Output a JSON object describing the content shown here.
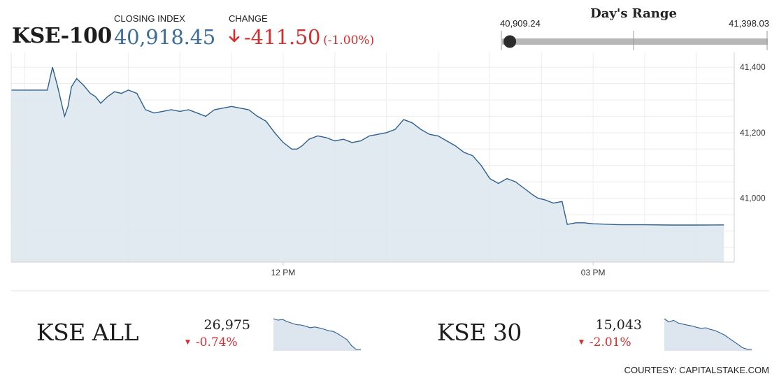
{
  "header": {
    "ticker": "KSE-100",
    "closing_label": "CLOSING INDEX",
    "closing_value": "40,918.45",
    "change_label": "CHANGE",
    "change_value": "-411.50",
    "change_pct": "(-1.00%)",
    "down_color": "#d32f2f",
    "accent_color": "#3d6e9b"
  },
  "day_range": {
    "title": "Day's Range",
    "low": "40,909.24",
    "high": "41,398.03",
    "low_value": 40909.24,
    "high_value": 41398.03,
    "current_value": 40918.45
  },
  "chart_data": {
    "type": "area",
    "x_ticks": [
      {
        "label": "12 PM",
        "time": 720
      },
      {
        "label": "03 PM",
        "time": 900
      }
    ],
    "y_ticks": [
      {
        "label": "41,400",
        "value": 41400
      },
      {
        "label": "41,200",
        "value": 41200
      },
      {
        "label": "41,000",
        "value": 41000
      }
    ],
    "ylim": [
      40805,
      41445
    ],
    "xlim": [
      562,
      982
    ],
    "grid": true,
    "line_color": "#2e5f8e",
    "fill_color": "#dde6ef",
    "series": [
      {
        "time": [
          570,
          578,
          583,
          586,
          589,
          593,
          595,
          597,
          600,
          604,
          608,
          611,
          614,
          618,
          622,
          626,
          630,
          635,
          640,
          645,
          650,
          655,
          660,
          665,
          670,
          675,
          680,
          685,
          690,
          695,
          700,
          705,
          710,
          715,
          720,
          725,
          728,
          731,
          735,
          740,
          745,
          750,
          755,
          760,
          765,
          770,
          775,
          780,
          785,
          790,
          795,
          800,
          805,
          810,
          815,
          820,
          825,
          830,
          835,
          840,
          845,
          850,
          855,
          860,
          865,
          868,
          872,
          877,
          882,
          885,
          890,
          895,
          898,
          900,
          905,
          910,
          915,
          920,
          930,
          945,
          960,
          976
        ],
        "value": [
          41330,
          41330,
          41330,
          41400,
          41340,
          41250,
          41280,
          41340,
          41365,
          41345,
          41320,
          41310,
          41290,
          41310,
          41325,
          41320,
          41330,
          41320,
          41270,
          41260,
          41265,
          41270,
          41265,
          41270,
          41260,
          41250,
          41270,
          41275,
          41280,
          41275,
          41270,
          41250,
          41235,
          41200,
          41170,
          41150,
          41150,
          41160,
          41180,
          41190,
          41185,
          41175,
          41180,
          41170,
          41175,
          41190,
          41195,
          41200,
          41210,
          41240,
          41230,
          41210,
          41195,
          41190,
          41175,
          41160,
          41140,
          41130,
          41100,
          41060,
          41045,
          41060,
          41050,
          41030,
          41010,
          41000,
          40995,
          40985,
          40990,
          40920,
          40925,
          40925,
          40923,
          40922,
          40921,
          40920,
          40919,
          40919,
          40919,
          40918,
          40918,
          40918.45
        ]
      }
    ]
  },
  "mini_indices": [
    {
      "name": "KSE ALL",
      "value": "26,975",
      "change": "-0.74%",
      "sparkline": [
        27180,
        27170,
        27175,
        27160,
        27150,
        27140,
        27138,
        27130,
        27120,
        27125,
        27118,
        27110,
        27100,
        27095,
        27080,
        27060,
        27040,
        27000,
        26975,
        26975
      ]
    },
    {
      "name": "KSE 30",
      "value": "15,043",
      "change": "-2.01%",
      "sparkline": [
        15330,
        15300,
        15315,
        15290,
        15280,
        15270,
        15262,
        15250,
        15240,
        15245,
        15230,
        15220,
        15200,
        15180,
        15150,
        15120,
        15090,
        15060,
        15045,
        15043
      ]
    }
  ],
  "footer": {
    "courtesy": "COURTESY: CAPITALSTAKE.COM"
  }
}
